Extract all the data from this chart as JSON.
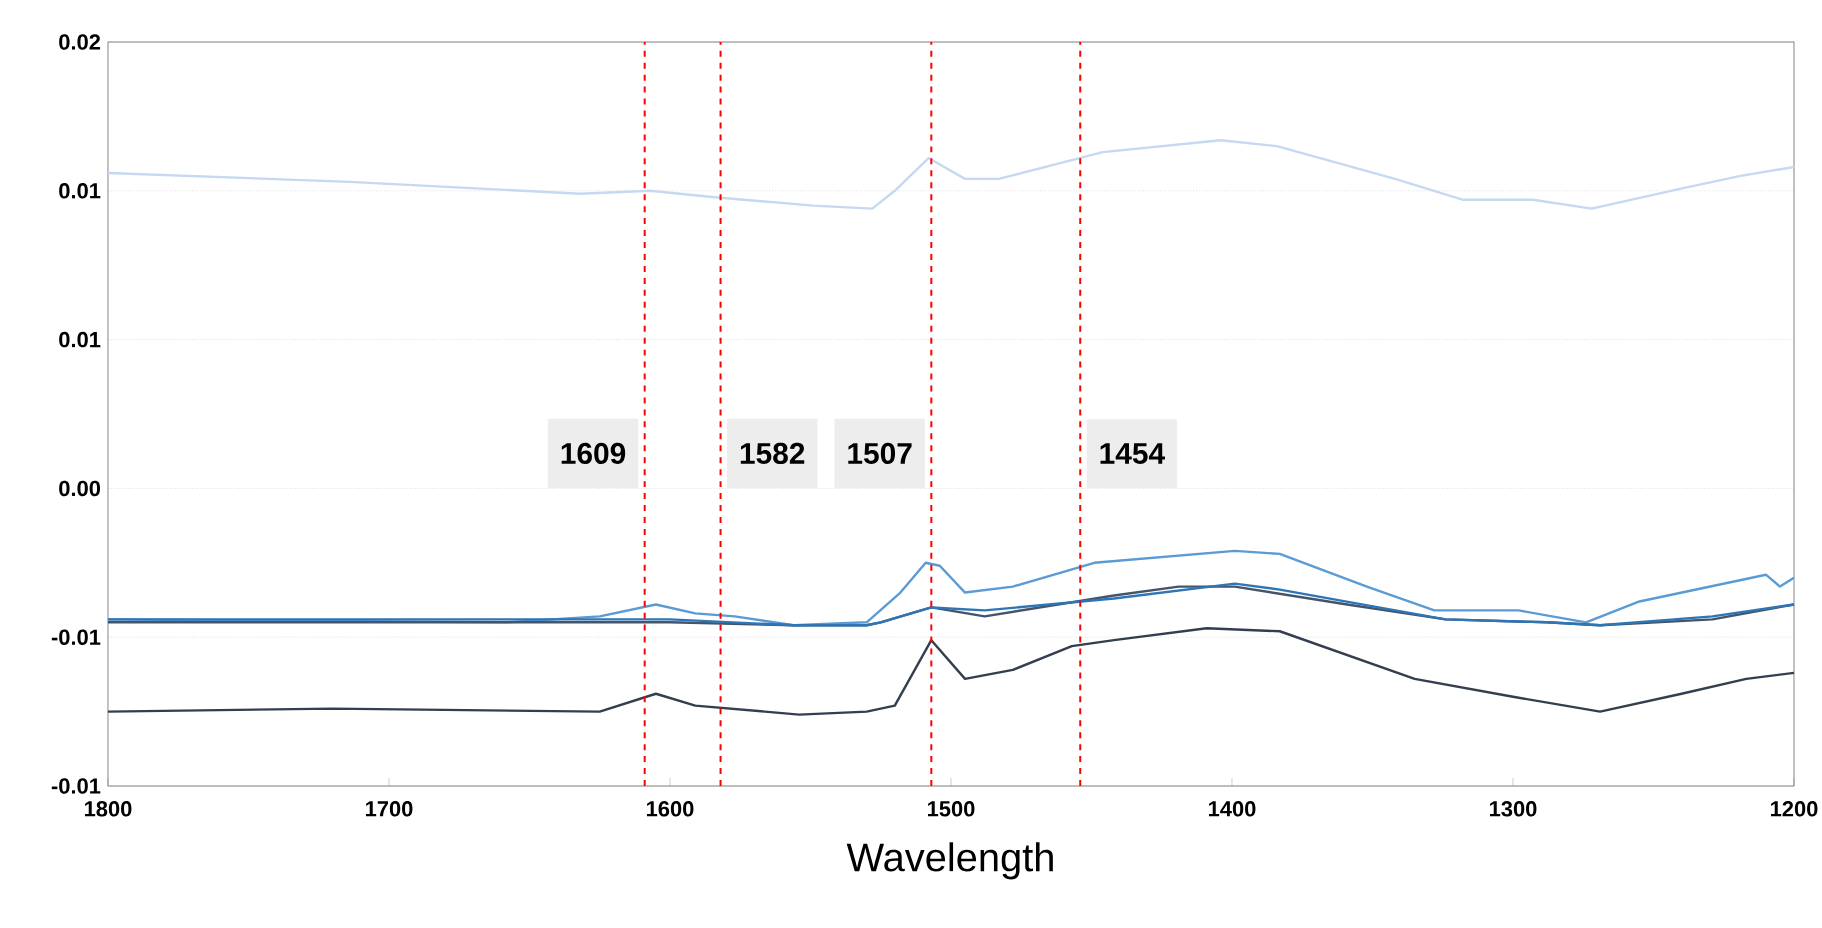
{
  "chart_data": {
    "type": "line",
    "xlabel": "Wavelength",
    "xlim": [
      1800,
      1200
    ],
    "xticks": [
      1800,
      1700,
      1600,
      1500,
      1400,
      1300,
      1200
    ],
    "ylim": [
      -0.01,
      0.015
    ],
    "yticks": [
      {
        "value": -0.01,
        "label": "-0.01"
      },
      {
        "value": -0.005,
        "label": "-0.01"
      },
      {
        "value": 0,
        "label": "0.00"
      },
      {
        "value": 0.005,
        "label": "0.01"
      },
      {
        "value": 0.01,
        "label": "0.01"
      },
      {
        "value": 0.015,
        "label": "0.02"
      }
    ],
    "grid": "y",
    "series": [
      {
        "color": "#c5d9f1",
        "x": [
          1800,
          1714,
          1632,
          1607,
          1586,
          1549,
          1528,
          1520,
          1508,
          1495,
          1483,
          1446,
          1404,
          1384,
          1342,
          1318,
          1293,
          1272,
          1239,
          1219,
          1200
        ],
        "values": [
          0.0106,
          0.0103,
          0.0099,
          0.01,
          0.0098,
          0.0095,
          0.0094,
          0.01,
          0.0111,
          0.0104,
          0.0104,
          0.0113,
          0.0117,
          0.0115,
          0.0104,
          0.0097,
          0.0097,
          0.0094,
          0.0101,
          0.0105,
          0.0108
        ]
      },
      {
        "color": "#5b9bd5",
        "x": [
          1800,
          1658,
          1625,
          1605,
          1591,
          1577,
          1556,
          1530,
          1518,
          1509,
          1504,
          1495,
          1478,
          1449,
          1399,
          1383,
          1352,
          1328,
          1298,
          1274,
          1255,
          1210,
          1205,
          1200
        ],
        "values": [
          -0.0044,
          -0.0045,
          -0.0043,
          -0.0039,
          -0.0042,
          -0.0043,
          -0.0046,
          -0.0045,
          -0.0035,
          -0.0025,
          -0.0026,
          -0.0035,
          -0.0033,
          -0.0025,
          -0.0021,
          -0.0022,
          -0.0033,
          -0.0041,
          -0.0041,
          -0.0045,
          -0.0038,
          -0.0029,
          -0.0033,
          -0.003
        ]
      },
      {
        "color": "#44546a",
        "x": [
          1800,
          1700,
          1600,
          1556,
          1530,
          1525,
          1507,
          1488,
          1442,
          1419,
          1399,
          1359,
          1324,
          1288,
          1269,
          1229,
          1200
        ],
        "values": [
          -0.0045,
          -0.0045,
          -0.0045,
          -0.0046,
          -0.0046,
          -0.0045,
          -0.004,
          -0.0043,
          -0.0036,
          -0.0033,
          -0.0033,
          -0.0039,
          -0.0044,
          -0.0045,
          -0.0046,
          -0.0044,
          -0.0039
        ]
      },
      {
        "color": "#2e75b6",
        "x": [
          1800,
          1700,
          1600,
          1556,
          1530,
          1525,
          1507,
          1488,
          1442,
          1399,
          1383,
          1324,
          1288,
          1269,
          1229,
          1200
        ],
        "values": [
          -0.0044,
          -0.0044,
          -0.0044,
          -0.0046,
          -0.0046,
          -0.0045,
          -0.004,
          -0.0041,
          -0.0037,
          -0.0032,
          -0.0034,
          -0.0044,
          -0.0045,
          -0.0046,
          -0.0043,
          -0.0039
        ]
      },
      {
        "color": "#333f50",
        "x": [
          1800,
          1720,
          1625,
          1605,
          1591,
          1554,
          1530,
          1520,
          1507,
          1495,
          1478,
          1457,
          1442,
          1409,
          1383,
          1335,
          1300,
          1269,
          1240,
          1217,
          1200
        ],
        "values": [
          -0.0075,
          -0.0074,
          -0.0075,
          -0.0069,
          -0.0073,
          -0.0076,
          -0.0075,
          -0.0073,
          -0.0051,
          -0.0064,
          -0.0061,
          -0.0053,
          -0.0051,
          -0.0047,
          -0.0048,
          -0.0064,
          -0.007,
          -0.0075,
          -0.0069,
          -0.0064,
          -0.0062
        ]
      }
    ],
    "ref_lines": [
      {
        "axis": "x",
        "value": 1609,
        "label": "1609",
        "color": "#ff0000",
        "line_style": "dashed"
      },
      {
        "axis": "x",
        "value": 1582,
        "label": "1582",
        "color": "#ff0000",
        "line_style": "dashed"
      },
      {
        "axis": "x",
        "value": 1507,
        "label": "1507",
        "color": "#ff0000",
        "line_style": "dashed"
      },
      {
        "axis": "x",
        "value": 1454,
        "label": "1454",
        "color": "#ff0000",
        "line_style": "dashed"
      }
    ]
  }
}
